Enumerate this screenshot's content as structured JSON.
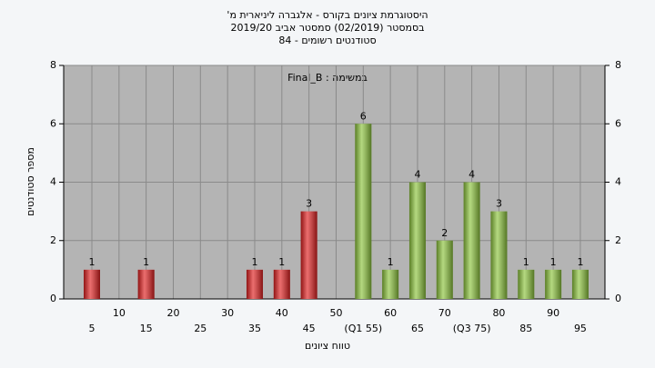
{
  "chart_data": {
    "type": "bar",
    "title": "'היסטוגרמת ציונים בקורס - אלגברה ליניארית מ",
    "subtitle": "בסמסטר  (02/2019)  סמסטר אביב 2019/20",
    "subtitle2": "סטודנטים רשומים - 84",
    "annotation": "Final_B : במשימה",
    "x_label": "טווח ציונים",
    "y_label": "מספר סטודנטים",
    "categories": [
      "5",
      "10",
      "15",
      "20",
      "25",
      "30",
      "35",
      "40",
      "45",
      "50",
      "(Q1 55)",
      "60",
      "65",
      "70",
      "(Q3 75)",
      "80",
      "85",
      "90",
      "95"
    ],
    "values": [
      1,
      0,
      1,
      0,
      0,
      0,
      1,
      1,
      3,
      0,
      6,
      1,
      4,
      2,
      4,
      3,
      1,
      1,
      1
    ],
    "value_labels": [
      "1",
      null,
      "1",
      null,
      null,
      null,
      "1",
      "1",
      "3",
      null,
      "6",
      "1",
      "4",
      "2",
      "4",
      "3",
      "1",
      "1",
      "1"
    ],
    "colors": [
      "#e02020",
      "#e02020",
      "#e02020",
      "#e02020",
      "#e02020",
      "#e02020",
      "#e02020",
      "#e02020",
      "#e02020",
      "#e02020",
      "#8cc43c",
      "#8cc43c",
      "#8cc43c",
      "#8cc43c",
      "#8cc43c",
      "#8cc43c",
      "#8cc43c",
      "#8cc43c",
      "#8cc43c"
    ],
    "ylim": [
      0,
      8
    ],
    "yticks": [
      0,
      2,
      4,
      6,
      8
    ],
    "grid": true
  }
}
